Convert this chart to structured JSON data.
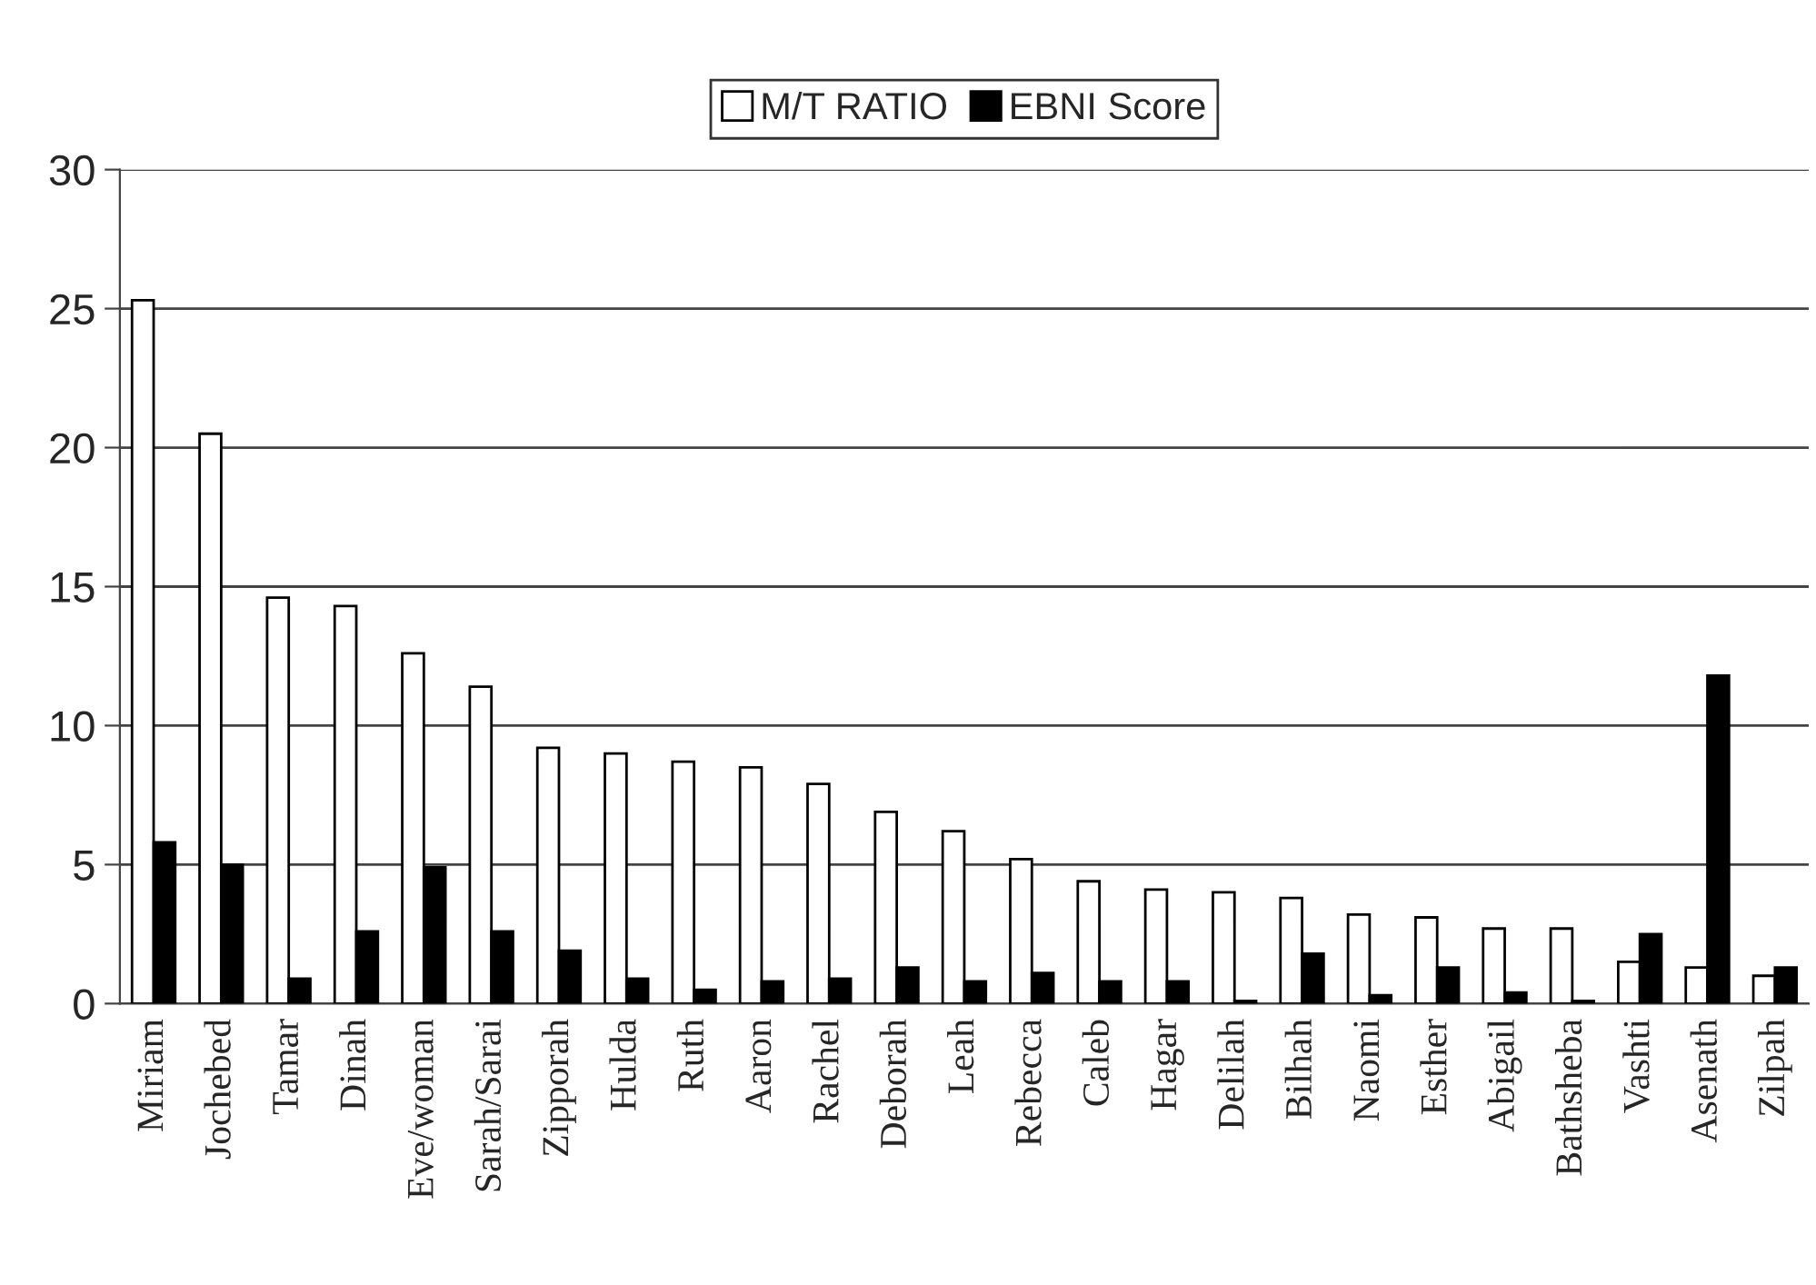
{
  "chart_data": {
    "type": "bar",
    "categories": [
      "Miriam",
      "Jochebed",
      "Tamar",
      "Dinah",
      "Eve/woman",
      "Sarah/Sarai",
      "Zipporah",
      "Hulda",
      "Ruth",
      "Aaron",
      "Rachel",
      "Deborah",
      "Leah",
      "Rebecca",
      "Caleb",
      "Hagar",
      "Delilah",
      "Bilhah",
      "Naomi",
      "Esther",
      "Abigail",
      "Bathsheba",
      "Vashti",
      "Asenath",
      "Zilpah"
    ],
    "series": [
      {
        "name": "M/T RATIO",
        "color": "#ffffff",
        "values": [
          25.3,
          20.5,
          14.6,
          14.3,
          12.6,
          11.4,
          9.2,
          9.0,
          8.7,
          8.5,
          7.9,
          6.9,
          6.2,
          5.2,
          4.4,
          4.1,
          4.0,
          3.8,
          3.2,
          3.1,
          2.7,
          2.7,
          1.5,
          1.3,
          1.0
        ]
      },
      {
        "name": "EBNI Score",
        "color": "#000000",
        "values": [
          5.8,
          5.0,
          0.9,
          2.6,
          4.9,
          2.6,
          1.9,
          0.9,
          0.5,
          0.8,
          0.9,
          1.3,
          0.8,
          1.1,
          0.8,
          0.8,
          0.1,
          1.8,
          0.3,
          1.3,
          0.4,
          0.1,
          2.5,
          11.8,
          1.3
        ]
      }
    ],
    "ylim": [
      0,
      30
    ],
    "yticks": [
      0,
      5,
      10,
      15,
      20,
      25,
      30
    ],
    "grid": "y",
    "legend": "top"
  }
}
